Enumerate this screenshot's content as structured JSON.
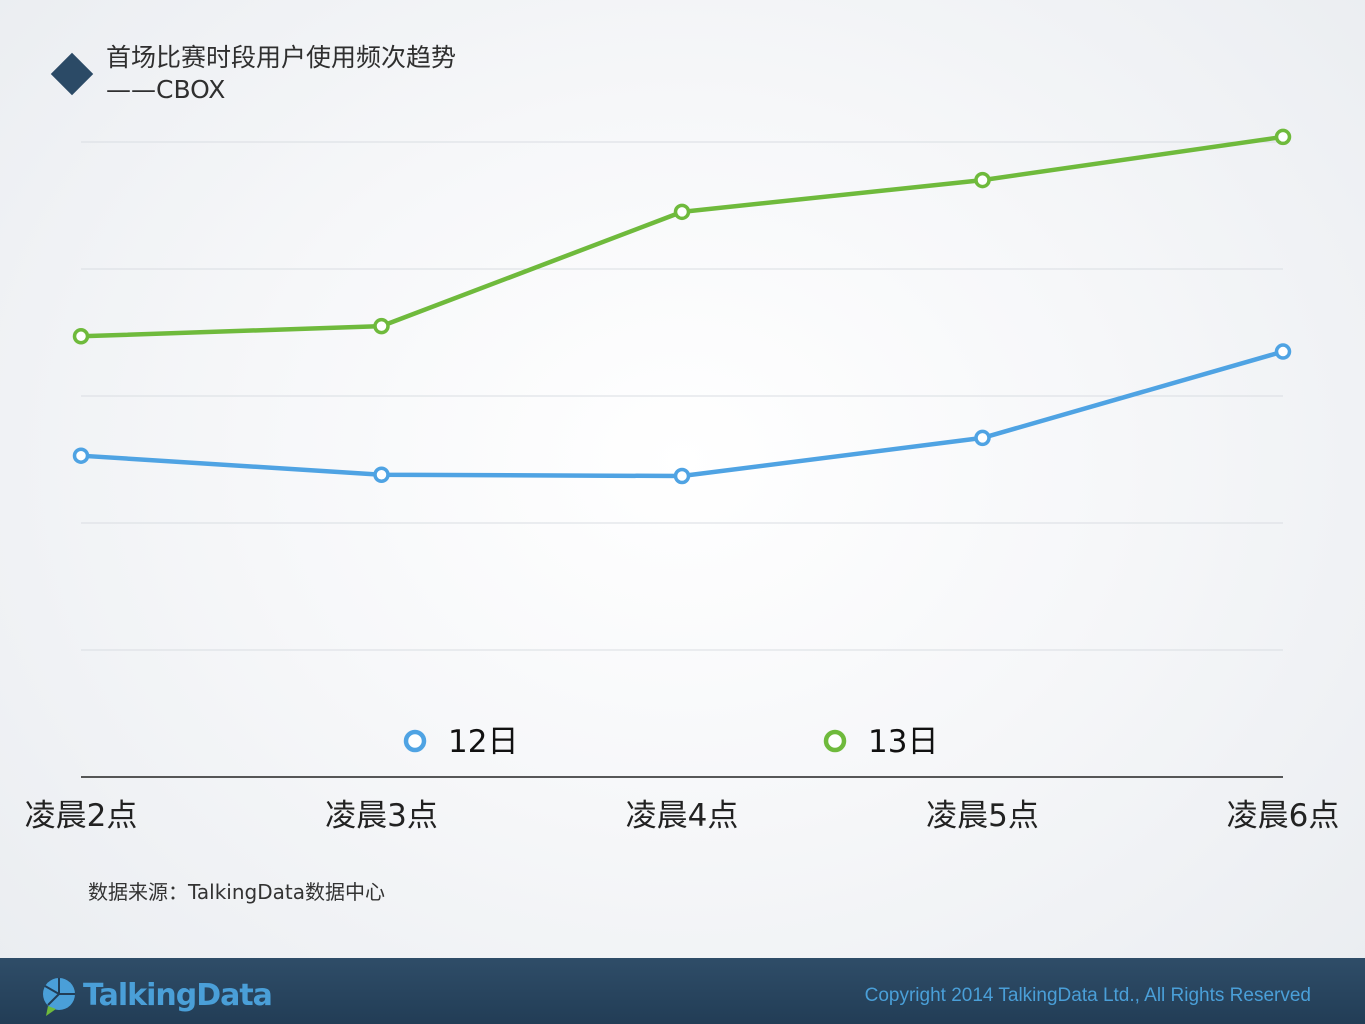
{
  "header": {
    "title": "首场比赛时段用户使用频次趋势",
    "subtitle": "——CBOX"
  },
  "chart_data": {
    "type": "line",
    "categories": [
      "凌晨2点",
      "凌晨3点",
      "凌晨4点",
      "凌晨5点",
      "凌晨6点"
    ],
    "series": [
      {
        "name": "12日",
        "color": "#4fa3e3",
        "values": [
          2.53,
          2.38,
          2.37,
          2.67,
          3.35
        ]
      },
      {
        "name": "13日",
        "color": "#6fba3c",
        "values": [
          3.47,
          3.55,
          4.45,
          4.7,
          5.04
        ]
      }
    ],
    "ylim": [
      0,
      6
    ],
    "grid": true,
    "legend_position": "bottom"
  },
  "footer": {
    "source": "数据来源：TalkingData数据中心",
    "brand": "TalkingData",
    "copyright": "Copyright 2014 TalkingData Ltd., All Rights Reserved"
  },
  "colors": {
    "footer_bg": "#2b4a64",
    "accent": "#4a9fd8",
    "title_marker": "#2b4a66"
  },
  "icons": {
    "title_marker": "diamond-icon",
    "brand_logo": "talkingdata-logo-icon"
  }
}
